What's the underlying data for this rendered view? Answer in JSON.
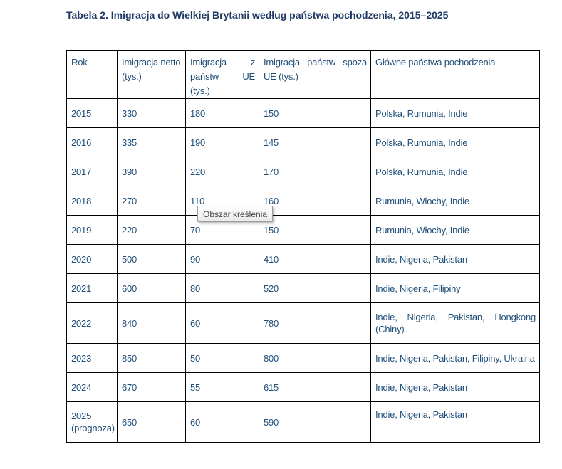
{
  "document": {
    "title": "Tabela 2. Imigracja do Wielkiej Brytanii według państwa pochodzenia, 2015–2025"
  },
  "table": {
    "headers": [
      "Rok",
      "Imigracja netto (tys.)",
      "Imigracja z państw UE (tys.)",
      "Imigracja państw spoza UE (tys.)",
      "Główne państwa pochodzenia"
    ],
    "rows": [
      [
        "2015",
        "330",
        "180",
        "150",
        "Polska, Rumunia, Indie"
      ],
      [
        "2016",
        "335",
        "190",
        "145",
        "Polska, Rumunia, Indie"
      ],
      [
        "2017",
        "390",
        "220",
        "170",
        "Polska, Rumunia, Indie"
      ],
      [
        "2018",
        "270",
        "110",
        "160",
        "Rumunia, Włochy, Indie"
      ],
      [
        "2019",
        "220",
        "70",
        "150",
        "Rumunia, Włochy, Indie"
      ],
      [
        "2020",
        "500",
        "90",
        "410",
        "Indie, Nigeria, Pakistan"
      ],
      [
        "2021",
        "600",
        "80",
        "520",
        "Indie, Nigeria, Filipiny"
      ],
      [
        "2022",
        "840",
        "60",
        "780",
        "Indie, Nigeria, Pakistan, Hongkong (Chiny)"
      ],
      [
        "2023",
        "850",
        "50",
        "800",
        "Indie, Nigeria, Pakistan, Filipiny, Ukraina"
      ],
      [
        "2024",
        "670",
        "55",
        "615",
        "Indie, Nigeria, Pakistan"
      ],
      [
        "2025 (prognoza)",
        "650",
        "60",
        "590",
        "Indie, Nigeria, Pakistan"
      ]
    ]
  },
  "tooltip": {
    "label": "Obszar kreślenia"
  },
  "colors": {
    "title_text": "#1F3864",
    "table_text": "#1F4E79",
    "table_border": "#000000",
    "tooltip_border": "#9B9B9B"
  }
}
